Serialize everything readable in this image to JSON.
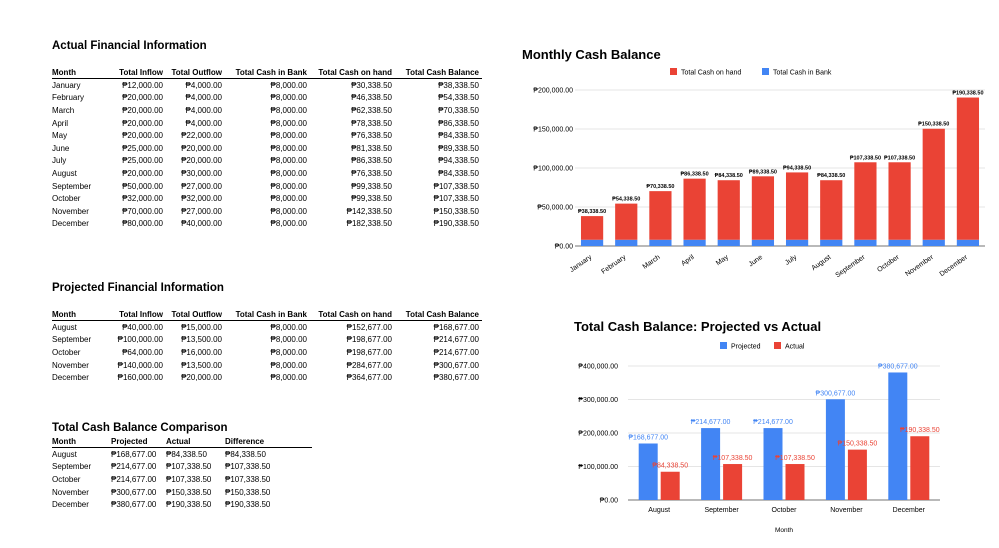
{
  "actual": {
    "title": "Actual Financial Information",
    "headers": [
      "Month",
      "Total Inflow",
      "Total Outflow",
      "Total Cash in Bank",
      "Total Cash on hand",
      "Total Cash Balance"
    ],
    "rows": [
      [
        "January",
        "₱12,000.00",
        "₱4,000.00",
        "₱8,000.00",
        "₱30,338.50",
        "₱38,338.50"
      ],
      [
        "February",
        "₱20,000.00",
        "₱4,000.00",
        "₱8,000.00",
        "₱46,338.50",
        "₱54,338.50"
      ],
      [
        "March",
        "₱20,000.00",
        "₱4,000.00",
        "₱8,000.00",
        "₱62,338.50",
        "₱70,338.50"
      ],
      [
        "April",
        "₱20,000.00",
        "₱4,000.00",
        "₱8,000.00",
        "₱78,338.50",
        "₱86,338.50"
      ],
      [
        "May",
        "₱20,000.00",
        "₱22,000.00",
        "₱8,000.00",
        "₱76,338.50",
        "₱84,338.50"
      ],
      [
        "June",
        "₱25,000.00",
        "₱20,000.00",
        "₱8,000.00",
        "₱81,338.50",
        "₱89,338.50"
      ],
      [
        "July",
        "₱25,000.00",
        "₱20,000.00",
        "₱8,000.00",
        "₱86,338.50",
        "₱94,338.50"
      ],
      [
        "August",
        "₱20,000.00",
        "₱30,000.00",
        "₱8,000.00",
        "₱76,338.50",
        "₱84,338.50"
      ],
      [
        "September",
        "₱50,000.00",
        "₱27,000.00",
        "₱8,000.00",
        "₱99,338.50",
        "₱107,338.50"
      ],
      [
        "October",
        "₱32,000.00",
        "₱32,000.00",
        "₱8,000.00",
        "₱99,338.50",
        "₱107,338.50"
      ],
      [
        "November",
        "₱70,000.00",
        "₱27,000.00",
        "₱8,000.00",
        "₱142,338.50",
        "₱150,338.50"
      ],
      [
        "December",
        "₱80,000.00",
        "₱40,000.00",
        "₱8,000.00",
        "₱182,338.50",
        "₱190,338.50"
      ]
    ]
  },
  "projected": {
    "title": "Projected Financial Information",
    "headers": [
      "Month",
      "Total Inflow",
      "Total Outflow",
      "Total Cash in Bank",
      "Total Cash on hand",
      "Total Cash Balance"
    ],
    "rows": [
      [
        "August",
        "₱40,000.00",
        "₱15,000.00",
        "₱8,000.00",
        "₱152,677.00",
        "₱168,677.00"
      ],
      [
        "September",
        "₱100,000.00",
        "₱13,500.00",
        "₱8,000.00",
        "₱198,677.00",
        "₱214,677.00"
      ],
      [
        "October",
        "₱64,000.00",
        "₱16,000.00",
        "₱8,000.00",
        "₱198,677.00",
        "₱214,677.00"
      ],
      [
        "November",
        "₱140,000.00",
        "₱13,500.00",
        "₱8,000.00",
        "₱284,677.00",
        "₱300,677.00"
      ],
      [
        "December",
        "₱160,000.00",
        "₱20,000.00",
        "₱8,000.00",
        "₱364,677.00",
        "₱380,677.00"
      ]
    ]
  },
  "comparison": {
    "title": "Total Cash Balance Comparison",
    "headers": [
      "Month",
      "Projected",
      "Actual",
      "Difference"
    ],
    "rows": [
      [
        "August",
        "₱168,677.00",
        "₱84,338.50",
        "₱84,338.50"
      ],
      [
        "September",
        "₱214,677.00",
        "₱107,338.50",
        "₱107,338.50"
      ],
      [
        "October",
        "₱214,677.00",
        "₱107,338.50",
        "₱107,338.50"
      ],
      [
        "November",
        "₱300,677.00",
        "₱150,338.50",
        "₱150,338.50"
      ],
      [
        "December",
        "₱380,677.00",
        "₱190,338.50",
        "₱190,338.50"
      ]
    ]
  },
  "chart_data": [
    {
      "type": "bar",
      "stacked": true,
      "title": "Monthly Cash Balance",
      "categories": [
        "January",
        "February",
        "March",
        "April",
        "May",
        "June",
        "July",
        "August",
        "September",
        "October",
        "November",
        "December"
      ],
      "series": [
        {
          "name": "Total Cash on hand",
          "color": "#ea4335",
          "values": [
            30338.5,
            46338.5,
            62338.5,
            78338.5,
            76338.5,
            81338.5,
            86338.5,
            76338.5,
            99338.5,
            99338.5,
            142338.5,
            182338.5
          ]
        },
        {
          "name": "Total Cash in Bank",
          "color": "#4285f4",
          "values": [
            8000,
            8000,
            8000,
            8000,
            8000,
            8000,
            8000,
            8000,
            8000,
            8000,
            8000,
            8000
          ]
        }
      ],
      "data_labels": [
        "₱38,338.50",
        "₱54,338.50",
        "₱70,338.50",
        "₱86,338.50",
        "₱84,338.50",
        "₱89,338.50",
        "₱94,338.50",
        "₱84,338.50",
        "₱107,338.50",
        "₱107,338.50",
        "₱150,338.50",
        "₱190,338.50"
      ],
      "yticks": [
        "₱0.00",
        "₱50,000.00",
        "₱100,000.00",
        "₱150,000.00",
        "₱200,000.00"
      ],
      "ylim": [
        0,
        200000
      ],
      "legend": "top",
      "grid": true
    },
    {
      "type": "bar",
      "title": "Total Cash Balance: Projected vs Actual",
      "categories": [
        "August",
        "September",
        "October",
        "November",
        "December"
      ],
      "series": [
        {
          "name": "Projected",
          "color": "#4285f4",
          "values": [
            168677,
            214677,
            214677,
            300677,
            380677
          ],
          "labels": [
            "₱168,677.00",
            "₱214,677.00",
            "₱214,677.00",
            "₱300,677.00",
            "₱380,677.00"
          ]
        },
        {
          "name": "Actual",
          "color": "#ea4335",
          "values": [
            84338.5,
            107338.5,
            107338.5,
            150338.5,
            190338.5
          ],
          "labels": [
            "₱84,338.50",
            "₱107,338.50",
            "₱107,338.50",
            "₱150,338.50",
            "₱190,338.50"
          ]
        }
      ],
      "yticks": [
        "₱0.00",
        "₱100,000.00",
        "₱200,000.00",
        "₱300,000.00",
        "₱400,000.00"
      ],
      "ylim": [
        0,
        400000
      ],
      "xlabel": "Month",
      "legend": "top",
      "grid": true
    }
  ]
}
